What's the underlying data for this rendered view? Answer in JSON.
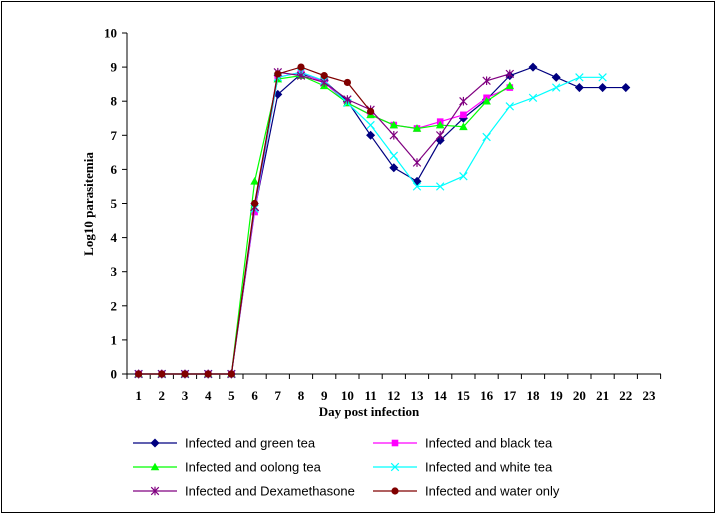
{
  "chart_data": {
    "type": "line",
    "title": "",
    "xlabel": "Day post infection",
    "ylabel": "Log10 parasitemia",
    "categories": [
      1,
      2,
      3,
      4,
      5,
      6,
      7,
      8,
      9,
      10,
      11,
      12,
      13,
      14,
      15,
      16,
      17,
      18,
      19,
      20,
      21,
      22,
      23
    ],
    "ylim": [
      0,
      10
    ],
    "yticks": [
      0,
      1,
      2,
      3,
      4,
      5,
      6,
      7,
      8,
      9,
      10
    ],
    "grid": false,
    "legend_position": "bottom",
    "series": [
      {
        "name": "Infected and green  tea",
        "color": "#000080",
        "marker": "diamond",
        "points": [
          [
            1,
            0
          ],
          [
            2,
            0
          ],
          [
            3,
            0
          ],
          [
            4,
            0
          ],
          [
            5,
            0
          ],
          [
            6,
            4.8
          ],
          [
            7,
            8.2
          ],
          [
            8,
            8.8
          ],
          [
            9,
            8.6
          ],
          [
            10,
            8.0
          ],
          [
            11,
            7.0
          ],
          [
            12,
            6.05
          ],
          [
            13,
            5.65
          ],
          [
            14,
            6.85
          ],
          [
            15,
            7.5
          ],
          [
            16,
            8.05
          ],
          [
            17,
            8.75
          ],
          [
            18,
            9.0
          ],
          [
            19,
            8.7
          ],
          [
            20,
            8.4
          ],
          [
            21,
            8.4
          ],
          [
            22,
            8.4
          ]
        ]
      },
      {
        "name": "Infected and black  tea",
        "color": "#FF00FF",
        "marker": "square",
        "points": [
          [
            1,
            0
          ],
          [
            2,
            0
          ],
          [
            3,
            0
          ],
          [
            4,
            0
          ],
          [
            5,
            0
          ],
          [
            6,
            4.75
          ],
          [
            7,
            8.7
          ],
          [
            8,
            8.85
          ],
          [
            9,
            8.55
          ],
          [
            10,
            7.95
          ],
          [
            11,
            7.6
          ],
          [
            12,
            7.3
          ],
          [
            13,
            7.2
          ],
          [
            14,
            7.4
          ],
          [
            15,
            7.6
          ],
          [
            16,
            8.1
          ],
          [
            17,
            8.4
          ]
        ]
      },
      {
        "name": "Infected and oolong  tea",
        "color": "#00FF00",
        "marker": "triangle",
        "points": [
          [
            1,
            0
          ],
          [
            2,
            0
          ],
          [
            3,
            0
          ],
          [
            4,
            0
          ],
          [
            5,
            0
          ],
          [
            6,
            5.65
          ],
          [
            7,
            8.65
          ],
          [
            8,
            8.75
          ],
          [
            9,
            8.45
          ],
          [
            10,
            7.95
          ],
          [
            11,
            7.6
          ],
          [
            12,
            7.3
          ],
          [
            13,
            7.2
          ],
          [
            14,
            7.3
          ],
          [
            15,
            7.25
          ],
          [
            16,
            8.0
          ],
          [
            17,
            8.45
          ]
        ]
      },
      {
        "name": "Infected and white  tea",
        "color": "#00FFFF",
        "marker": "x",
        "points": [
          [
            1,
            0
          ],
          [
            2,
            0
          ],
          [
            3,
            0
          ],
          [
            4,
            0
          ],
          [
            5,
            0
          ],
          [
            6,
            4.85
          ],
          [
            7,
            8.7
          ],
          [
            8,
            8.85
          ],
          [
            9,
            8.6
          ],
          [
            10,
            7.95
          ],
          [
            11,
            7.3
          ],
          [
            12,
            6.4
          ],
          [
            13,
            5.5
          ],
          [
            14,
            5.5
          ],
          [
            15,
            5.8
          ],
          [
            16,
            6.95
          ],
          [
            17,
            7.85
          ],
          [
            18,
            8.1
          ],
          [
            19,
            8.4
          ],
          [
            20,
            8.7
          ],
          [
            21,
            8.7
          ]
        ]
      },
      {
        "name": "Infected and Dexamethasone",
        "color": "#800080",
        "marker": "star",
        "points": [
          [
            1,
            0
          ],
          [
            2,
            0
          ],
          [
            3,
            0
          ],
          [
            4,
            0
          ],
          [
            5,
            0
          ],
          [
            6,
            4.9
          ],
          [
            7,
            8.85
          ],
          [
            8,
            8.75
          ],
          [
            9,
            8.55
          ],
          [
            10,
            8.05
          ],
          [
            11,
            7.75
          ],
          [
            12,
            7.0
          ],
          [
            13,
            6.2
          ],
          [
            14,
            7.0
          ],
          [
            15,
            8.0
          ],
          [
            16,
            8.6
          ],
          [
            17,
            8.8
          ]
        ]
      },
      {
        "name": "Infected and water only",
        "color": "#800000",
        "marker": "circle",
        "points": [
          [
            1,
            0
          ],
          [
            2,
            0
          ],
          [
            3,
            0
          ],
          [
            4,
            0
          ],
          [
            5,
            0
          ],
          [
            6,
            5.0
          ],
          [
            7,
            8.8
          ],
          [
            8,
            9.0
          ],
          [
            9,
            8.75
          ],
          [
            10,
            8.55
          ],
          [
            11,
            7.7
          ]
        ]
      }
    ]
  }
}
